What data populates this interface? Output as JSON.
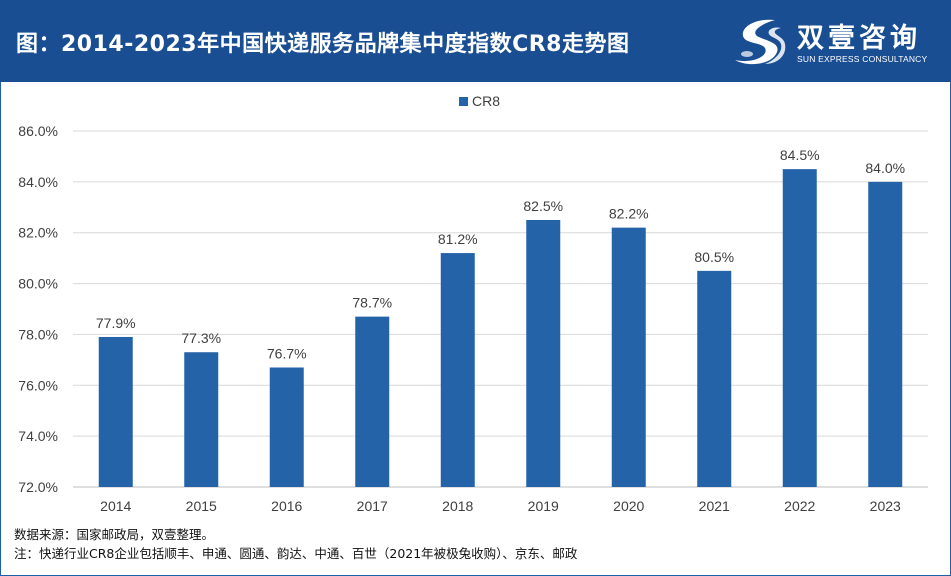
{
  "header": {
    "title": "图：2014-2023年中国快递服务品牌集中度指数CR8走势图",
    "logo_name": "双壹咨询",
    "logo_sub": "SUN EXPRESS CONSULTANCY",
    "logo_icon": "stylized-s-swoosh-icon"
  },
  "colors": {
    "header_bg": "#1a4e93",
    "bar": "#2563a9",
    "grid": "#d9d9d9",
    "text": "#404040"
  },
  "chart_data": {
    "type": "bar",
    "title": "",
    "xlabel": "",
    "ylabel": "",
    "legend": {
      "label": "CR8",
      "position": "top-center"
    },
    "categories": [
      "2014",
      "2015",
      "2016",
      "2017",
      "2018",
      "2019",
      "2020",
      "2021",
      "2022",
      "2023"
    ],
    "values": [
      77.9,
      77.3,
      76.7,
      78.7,
      81.2,
      82.5,
      82.2,
      80.5,
      84.5,
      84.0
    ],
    "data_labels": [
      "77.9%",
      "77.3%",
      "76.7%",
      "78.7%",
      "81.2%",
      "82.5%",
      "82.2%",
      "80.5%",
      "84.5%",
      "84.0%"
    ],
    "ylim": [
      72,
      86
    ],
    "yticks": [
      72,
      74,
      76,
      78,
      80,
      82,
      84,
      86
    ],
    "ytick_labels": [
      "72.0%",
      "74.0%",
      "76.0%",
      "78.0%",
      "80.0%",
      "82.0%",
      "84.0%",
      "86.0%"
    ],
    "grid": true
  },
  "footer": {
    "source": "数据来源：国家邮政局，双壹整理。",
    "note": "注：快递行业CR8企业包括顺丰、申通、圆通、韵达、中通、百世（2021年被极兔收购）、京东、邮政"
  }
}
